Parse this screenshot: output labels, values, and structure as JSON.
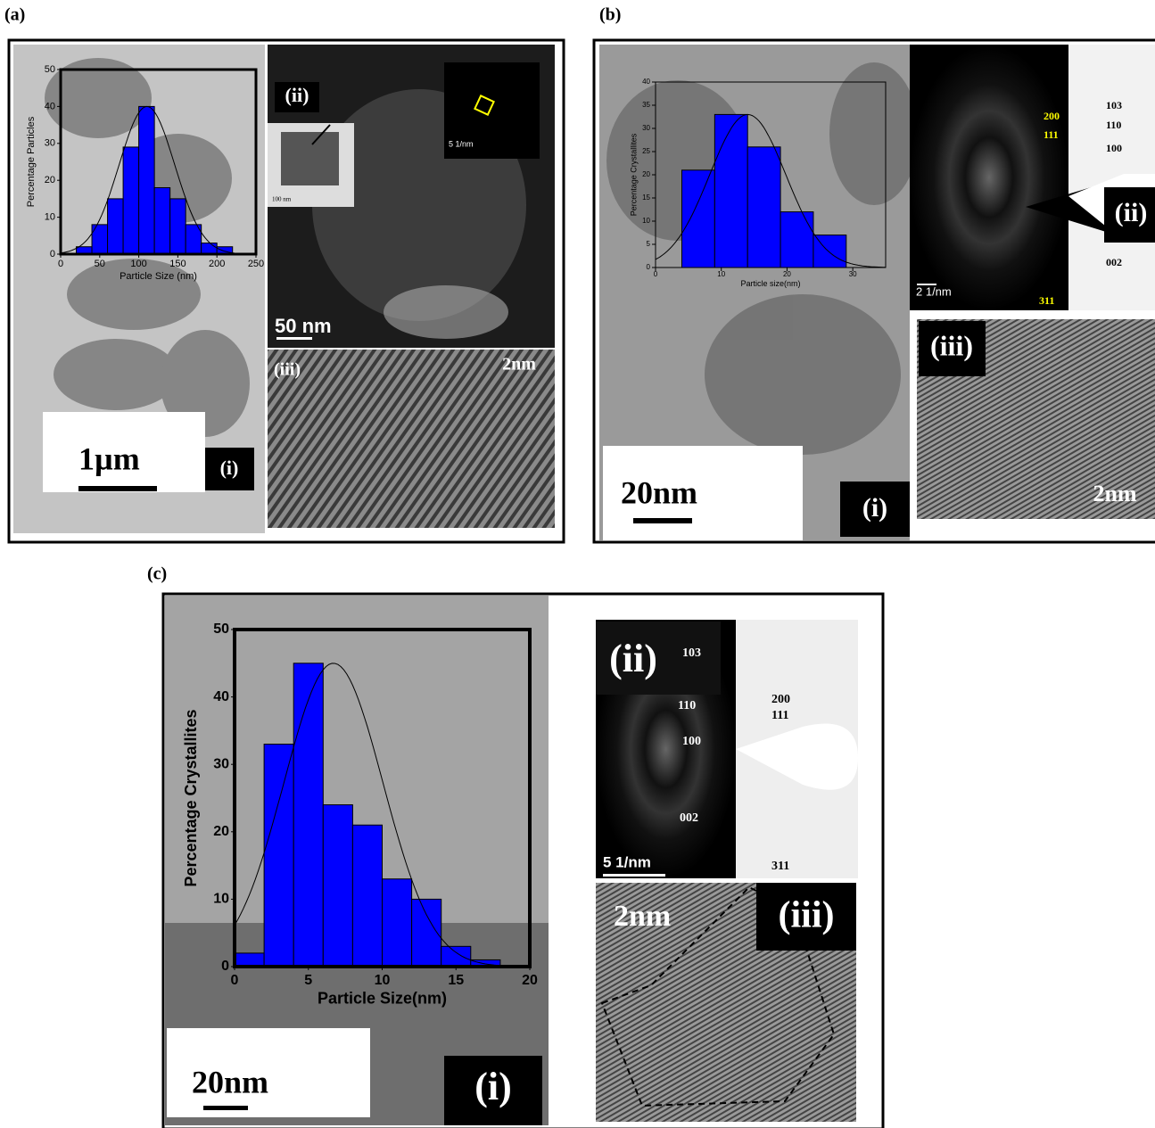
{
  "panels": [
    {
      "label": "(a)",
      "subpanels": [
        "(i)",
        "(ii)",
        "(iii)"
      ],
      "scale_bars": [
        "1µm",
        "50  nm",
        "2nm",
        "5 1/nm",
        "100 nm"
      ]
    },
    {
      "label": "(b)",
      "subpanels": [
        "(i)",
        "(ii)",
        "(iii)"
      ],
      "scale_bars": [
        "20nm",
        "2nm",
        "2 1/nm"
      ],
      "indices": [
        "103",
        "200",
        "110",
        "111",
        "100",
        "002",
        "311"
      ]
    },
    {
      "label": "(c)",
      "subpanels": [
        "(i)",
        "(ii)",
        "(iii)"
      ],
      "scale_bars": [
        "20nm",
        "2nm",
        "5 1/nm"
      ],
      "indices": [
        "103",
        "110",
        "200",
        "111",
        "100",
        "002",
        "311"
      ]
    }
  ],
  "chart_data": [
    {
      "type": "histogram",
      "xlabel": "Particle Size (nm)",
      "ylabel": "Percentage Particles",
      "bins": [
        20,
        40,
        60,
        80,
        100,
        120,
        140,
        160,
        180,
        200,
        220
      ],
      "values": [
        2,
        8,
        15,
        29,
        40,
        18,
        15,
        8,
        3,
        2
      ],
      "color": "#0000ff",
      "xlim": [
        0,
        250
      ],
      "xticks": [
        0,
        50,
        100,
        150,
        200,
        250
      ],
      "ylim": [
        0,
        50
      ],
      "yticks": [
        0,
        10,
        20,
        30,
        40,
        50
      ]
    },
    {
      "type": "histogram",
      "xlabel": "Particle size(nm)",
      "ylabel": "Percentage Crystallites",
      "bins": [
        4,
        9,
        14,
        19,
        24,
        29
      ],
      "values": [
        21,
        33,
        26,
        12,
        7
      ],
      "color": "#0000ff",
      "xlim": [
        0,
        35
      ],
      "xticks": [
        0,
        10,
        20,
        30
      ],
      "ylim": [
        0,
        40
      ],
      "yticks": [
        0,
        5,
        10,
        15,
        20,
        25,
        30,
        35,
        40
      ]
    },
    {
      "type": "histogram",
      "xlabel": "Particle Size(nm)",
      "ylabel": "Percentage Crystallites",
      "bins": [
        0,
        2,
        4,
        6,
        8,
        10,
        12,
        14,
        16,
        18
      ],
      "values": [
        2,
        33,
        45,
        24,
        21,
        13,
        10,
        3,
        1
      ],
      "color": "#0000ff",
      "xlim": [
        0,
        20
      ],
      "xticks": [
        0,
        5,
        10,
        15,
        20
      ],
      "ylim": [
        0,
        50
      ],
      "yticks": [
        0,
        10,
        20,
        30,
        40,
        50
      ]
    }
  ]
}
